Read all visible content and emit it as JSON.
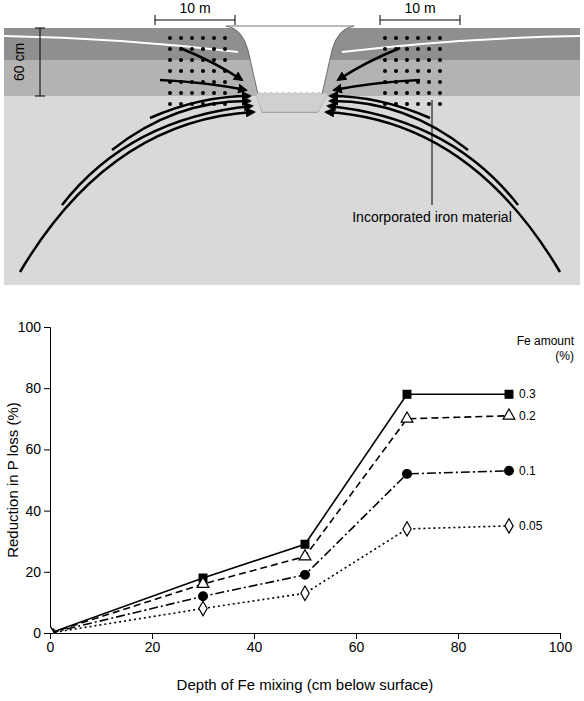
{
  "diagram": {
    "width_labels": [
      "10 m",
      "10 m"
    ],
    "depth_label": "60 cm",
    "annotation": "Incorporated iron material"
  },
  "chart_data": {
    "type": "line",
    "x_label": "Depth of Fe mixing (cm below surface)",
    "y_label": "Reduction in P loss (%)",
    "legend_title": "Fe amount (%)",
    "legend": "right",
    "x": [
      0,
      30,
      50,
      70,
      90
    ],
    "series": [
      {
        "name": "0.3",
        "color": "#000000",
        "marker": "filled-square",
        "line_style": "solid",
        "values": [
          0,
          18,
          29,
          78,
          78
        ]
      },
      {
        "name": "0.2",
        "color": "#000000",
        "marker": "open-triangle",
        "line_style": "dashed",
        "values": [
          0,
          16,
          25,
          70,
          71
        ]
      },
      {
        "name": "0.1",
        "color": "#000000",
        "marker": "filled-circle",
        "line_style": "dashdot",
        "values": [
          0,
          12,
          19,
          52,
          53
        ]
      },
      {
        "name": "0.05",
        "color": "#000000",
        "marker": "open-diamond",
        "line_style": "dotted",
        "values": [
          0,
          8,
          13,
          34,
          35
        ]
      }
    ],
    "xlim": [
      0,
      100
    ],
    "xticks": [
      0,
      20,
      40,
      60,
      80,
      100
    ],
    "ylim": [
      0,
      100
    ],
    "yticks": [
      0,
      20,
      40,
      60,
      80,
      100
    ],
    "grid": false
  }
}
